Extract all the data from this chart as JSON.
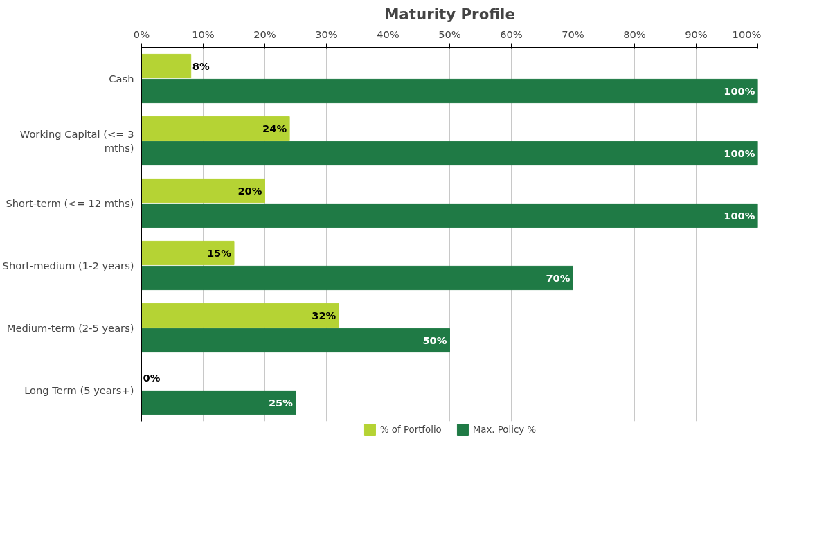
{
  "chart_data": {
    "type": "bar",
    "orientation": "horizontal",
    "title": "Maturity Profile",
    "categories": [
      "Cash",
      "Working Capital (<= 3 mths)",
      "Short-term (<= 12 mths)",
      "Short-medium (1-2 years)",
      "Medium-term (2-5 years)",
      "Long Term (5 years+)"
    ],
    "series": [
      {
        "name": "% of Portfolio",
        "color": "#b5d334",
        "values": [
          8,
          24,
          20,
          15,
          32,
          0
        ],
        "value_labels": [
          "8%",
          "24%",
          "20%",
          "15%",
          "32%",
          "0%"
        ]
      },
      {
        "name": "Max. Policy %",
        "color": "#1f7a45",
        "values": [
          100,
          100,
          100,
          70,
          50,
          25
        ],
        "value_labels": [
          "100%",
          "100%",
          "100%",
          "70%",
          "50%",
          "25%"
        ]
      }
    ],
    "xlim": [
      0,
      100
    ],
    "xticks": [
      {
        "value": 0,
        "label": "0%"
      },
      {
        "value": 10,
        "label": "10%"
      },
      {
        "value": 20,
        "label": "20%"
      },
      {
        "value": 30,
        "label": "30%"
      },
      {
        "value": 40,
        "label": "40%"
      },
      {
        "value": 50,
        "label": "50%"
      },
      {
        "value": 60,
        "label": "60%"
      },
      {
        "value": 70,
        "label": "70%"
      },
      {
        "value": 80,
        "label": "80%"
      },
      {
        "value": 90,
        "label": "90%"
      },
      {
        "value": 100,
        "label": "100%"
      }
    ],
    "grid": "x",
    "legend": "bottom"
  }
}
